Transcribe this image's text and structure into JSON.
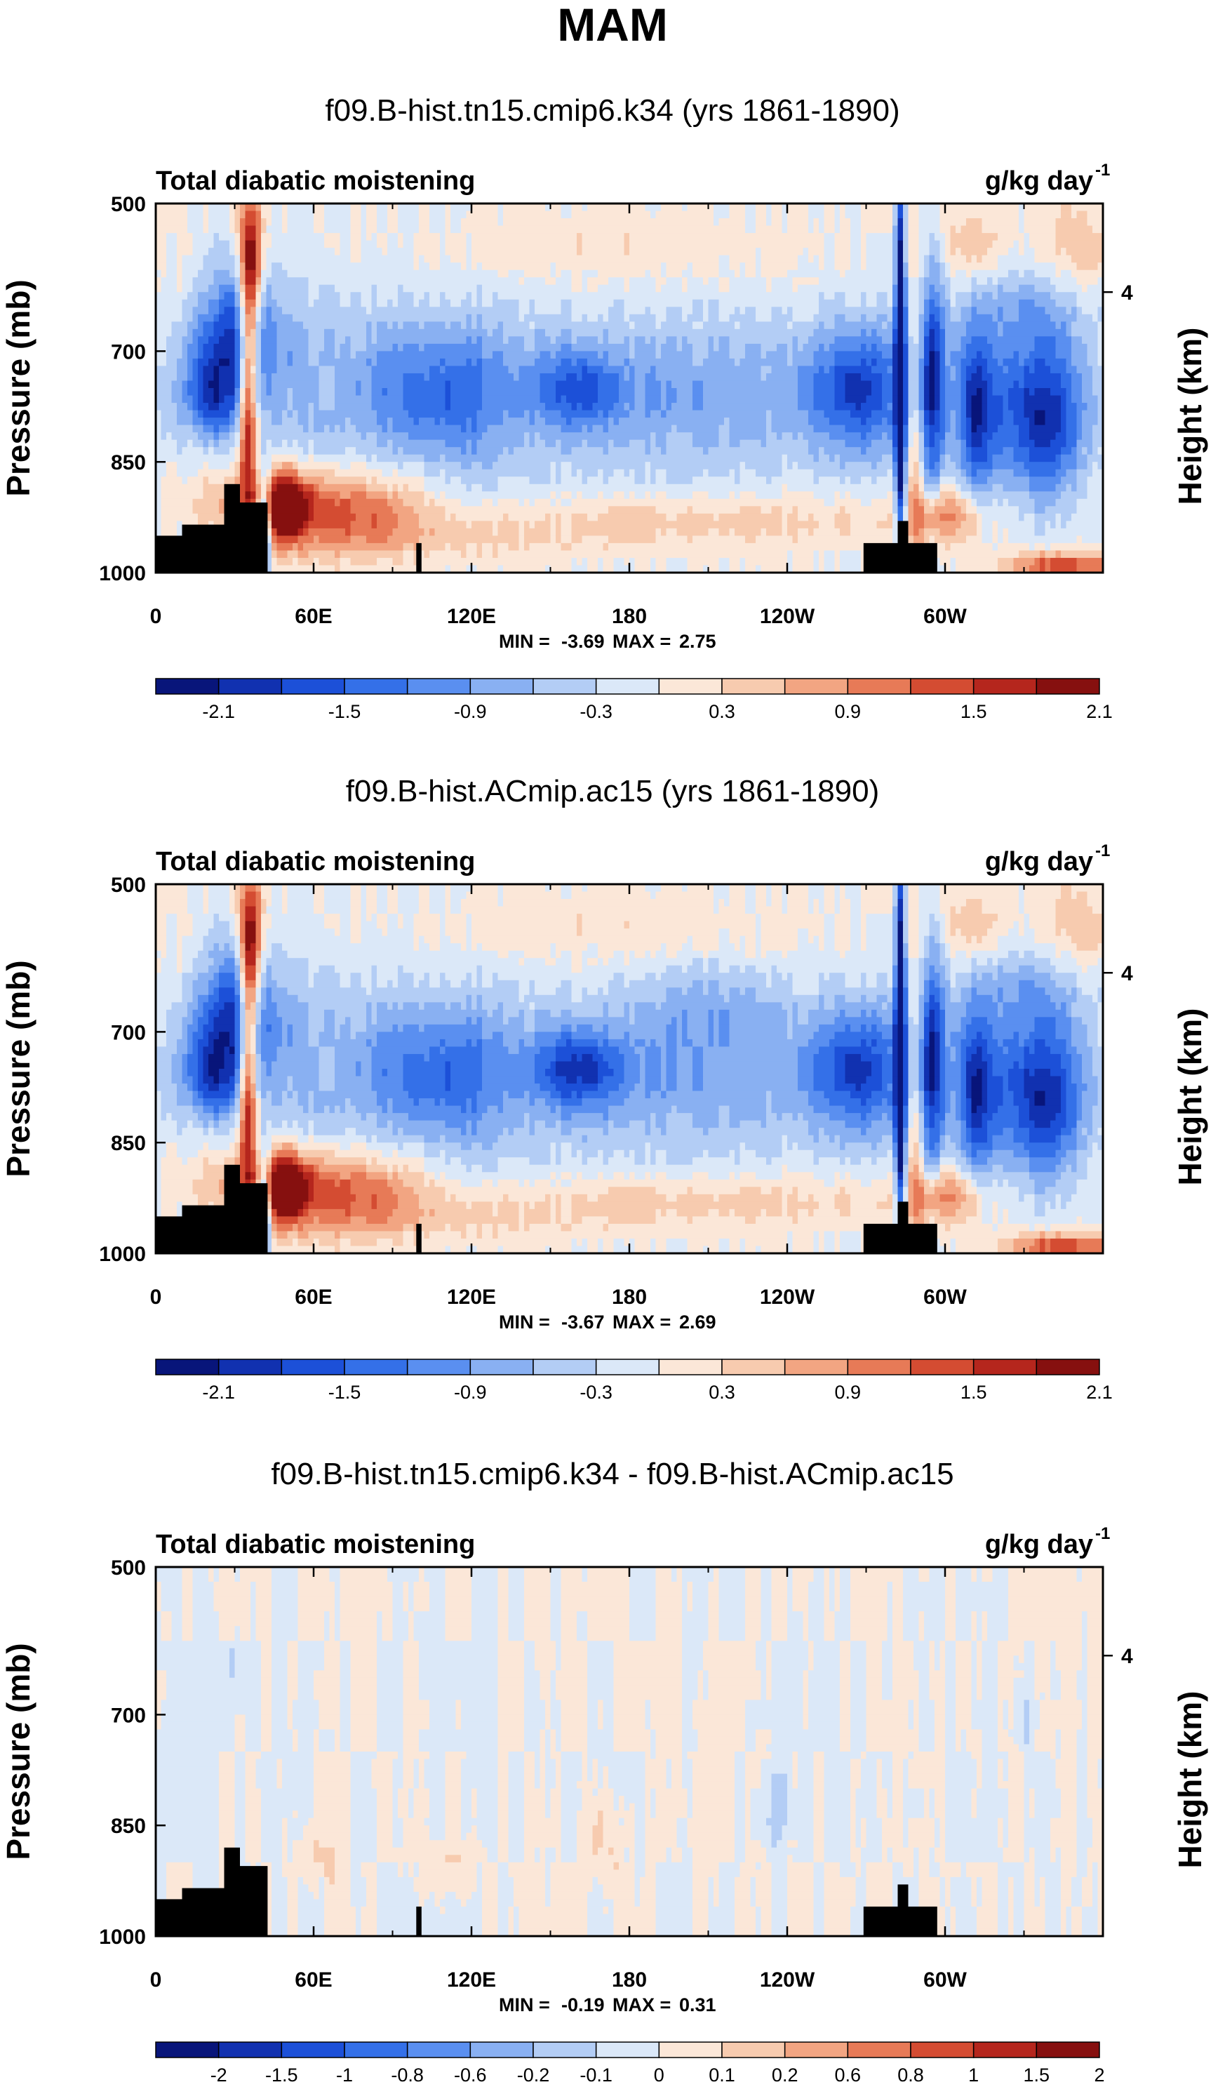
{
  "chart_data": {
    "type": "heatmap",
    "title": "MAM",
    "colorbar_colors": [
      "#08157a",
      "#1131b0",
      "#1c50d8",
      "#3470e8",
      "#5a8ff0",
      "#89b0f2",
      "#b3cdf5",
      "#dbe8f8",
      "#fbe7d8",
      "#f7cbaf",
      "#f2a582",
      "#e77a57",
      "#d44c32",
      "#b5261d",
      "#86100f"
    ],
    "panels": [
      {
        "title": "f09.B-hist.tn15.cmip6.k34 (yrs 1861-1890)",
        "left_label": "Total diabatic moistening",
        "units": "g/kg day",
        "units_exp": "-1",
        "ylabel": "Pressure (mb)",
        "ylabel_right": "Height (km)",
        "yticks": [
          "500",
          "700",
          "850",
          "1000"
        ],
        "yticks_right": [
          "4"
        ],
        "xticks": [
          "0",
          "60E",
          "120E",
          "180",
          "120W",
          "60W"
        ],
        "min_label": "MIN =",
        "min_value": "-3.69",
        "max_label": "MAX =",
        "max_value": "2.75",
        "colorbar_labels": [
          "-2.1",
          "-1.5",
          "-0.9",
          "-0.3",
          "0.3",
          "0.9",
          "1.5",
          "2.1"
        ],
        "contour_levels": [
          -2.4,
          -2.1,
          -1.8,
          -1.5,
          -1.2,
          -0.9,
          -0.6,
          -0.3,
          0,
          0.3,
          0.6,
          0.9,
          1.2,
          1.5,
          1.8,
          2.1,
          2.4
        ],
        "xlim_deg_east": [
          0,
          360
        ],
        "ylim_mb": [
          1000,
          500
        ],
        "features_deg_east": [
          {
            "lon": 35,
            "p_mb": 780,
            "value": 2.4
          },
          {
            "lon": 28,
            "p_mb": 680,
            "value": -2.7
          },
          {
            "lon": 47,
            "p_mb": 910,
            "value": 2.5
          },
          {
            "lon": 82,
            "p_mb": 920,
            "value": 1.0
          },
          {
            "lon": 160,
            "p_mb": 750,
            "value": -1.1
          },
          {
            "lon": 222,
            "p_mb": 920,
            "value": 0.5
          },
          {
            "lon": 283,
            "p_mb": 720,
            "value": -3.5
          },
          {
            "lon": 270,
            "p_mb": 760,
            "value": -1.3
          },
          {
            "lon": 298,
            "p_mb": 720,
            "value": -2.0
          },
          {
            "lon": 337,
            "p_mb": 790,
            "value": -2.2
          },
          {
            "lon": 345,
            "p_mb": 985,
            "value": 1.5
          }
        ]
      },
      {
        "title": "f09.B-hist.ACmip.ac15 (yrs 1861-1890)",
        "left_label": "Total diabatic moistening",
        "units": "g/kg day",
        "units_exp": "-1",
        "ylabel": "Pressure (mb)",
        "ylabel_right": "Height (km)",
        "yticks": [
          "500",
          "700",
          "850",
          "1000"
        ],
        "yticks_right": [
          "4"
        ],
        "xticks": [
          "0",
          "60E",
          "120E",
          "180",
          "120W",
          "60W"
        ],
        "min_label": "MIN =",
        "min_value": "-3.67",
        "max_label": "MAX =",
        "max_value": "2.69",
        "colorbar_labels": [
          "-2.1",
          "-1.5",
          "-0.9",
          "-0.3",
          "0.3",
          "0.9",
          "1.5",
          "2.1"
        ],
        "contour_levels": [
          -2.4,
          -2.1,
          -1.8,
          -1.5,
          -1.2,
          -0.9,
          -0.6,
          -0.3,
          0,
          0.3,
          0.6,
          0.9,
          1.2,
          1.5,
          1.8,
          2.1,
          2.4
        ],
        "xlim_deg_east": [
          0,
          360
        ],
        "ylim_mb": [
          1000,
          500
        ],
        "features_deg_east": [
          {
            "lon": 35,
            "p_mb": 780,
            "value": 2.3
          },
          {
            "lon": 28,
            "p_mb": 680,
            "value": -2.6
          },
          {
            "lon": 47,
            "p_mb": 910,
            "value": 2.4
          },
          {
            "lon": 82,
            "p_mb": 920,
            "value": 1.0
          },
          {
            "lon": 160,
            "p_mb": 760,
            "value": -1.4
          },
          {
            "lon": 222,
            "p_mb": 920,
            "value": 0.5
          },
          {
            "lon": 283,
            "p_mb": 720,
            "value": -3.5
          },
          {
            "lon": 270,
            "p_mb": 760,
            "value": -1.4
          },
          {
            "lon": 298,
            "p_mb": 720,
            "value": -2.0
          },
          {
            "lon": 337,
            "p_mb": 790,
            "value": -2.3
          },
          {
            "lon": 345,
            "p_mb": 985,
            "value": 1.5
          }
        ]
      },
      {
        "title": "f09.B-hist.tn15.cmip6.k34 - f09.B-hist.ACmip.ac15",
        "left_label": "Total diabatic moistening",
        "units": "g/kg day",
        "units_exp": "-1",
        "ylabel": "Pressure (mb)",
        "ylabel_right": "Height (km)",
        "yticks": [
          "500",
          "700",
          "850",
          "1000"
        ],
        "yticks_right": [
          "4"
        ],
        "xticks": [
          "0",
          "60E",
          "120E",
          "180",
          "120W",
          "60W"
        ],
        "min_label": "MIN =",
        "min_value": "-0.19",
        "max_label": "MAX =",
        "max_value": "0.31",
        "colorbar_labels": [
          "-2",
          "-1.5",
          "-1",
          "-0.8",
          "-0.6",
          "-0.2",
          "-0.1",
          "0",
          "0.1",
          "0.2",
          "0.6",
          "0.8",
          "1",
          "1.5",
          "2"
        ],
        "contour_levels": [
          -3,
          -2,
          -1.5,
          -1,
          -0.8,
          -0.6,
          -0.2,
          -0.1,
          0,
          0.1,
          0.2,
          0.6,
          0.8,
          1,
          1.5,
          2,
          3
        ],
        "xlim_deg_east": [
          0,
          360
        ],
        "ylim_mb": [
          1000,
          500
        ],
        "features_deg_east": [
          {
            "lon": 170,
            "p_mb": 870,
            "value": 0.15
          },
          {
            "lon": 60,
            "p_mb": 900,
            "value": 0.12
          },
          {
            "lon": 235,
            "p_mb": 830,
            "value": -0.12
          },
          {
            "lon": 330,
            "p_mb": 700,
            "value": -0.1
          }
        ]
      }
    ]
  }
}
